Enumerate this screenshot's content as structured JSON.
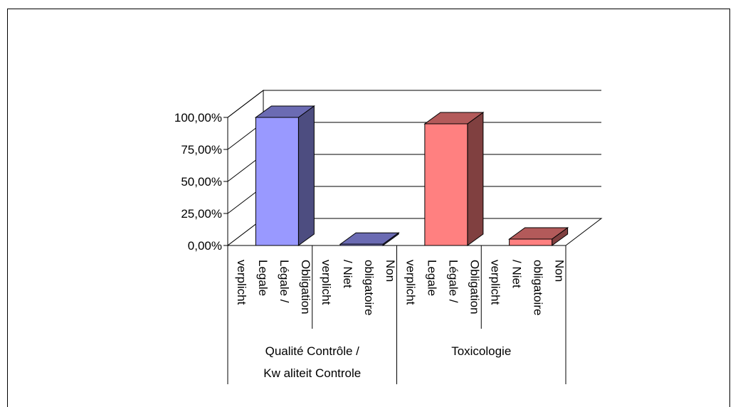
{
  "chart_data": {
    "type": "bar",
    "title": "",
    "xlabel": "",
    "ylabel": "",
    "ylim": [
      0,
      1
    ],
    "yticks": [
      "0,00%",
      "25,00%",
      "50,00%",
      "75,00%",
      "100,00%"
    ],
    "groups": [
      {
        "label_lines": [
          "Qualité Contrôle /",
          "Kw aliteit Controle"
        ],
        "bars": [
          {
            "label_lines": [
              "Obligation",
              "Légale /",
              "Legale",
              "verplicht"
            ],
            "value": 1.0,
            "color": "#9999ff"
          },
          {
            "label_lines": [
              "Non",
              "obligatoire",
              "/ Niet",
              "verplicht"
            ],
            "value": 0.01,
            "color": "#9999ff"
          }
        ]
      },
      {
        "label_lines": [
          "Toxicologie"
        ],
        "bars": [
          {
            "label_lines": [
              "Obligation",
              "Légale /",
              "Legale",
              "verplicht"
            ],
            "value": 0.95,
            "color": "#ff8080"
          },
          {
            "label_lines": [
              "Non",
              "obligatoire",
              "/ Niet",
              "verplicht"
            ],
            "value": 0.05,
            "color": "#ff8080"
          }
        ]
      }
    ],
    "grid": true,
    "legend": "none"
  }
}
